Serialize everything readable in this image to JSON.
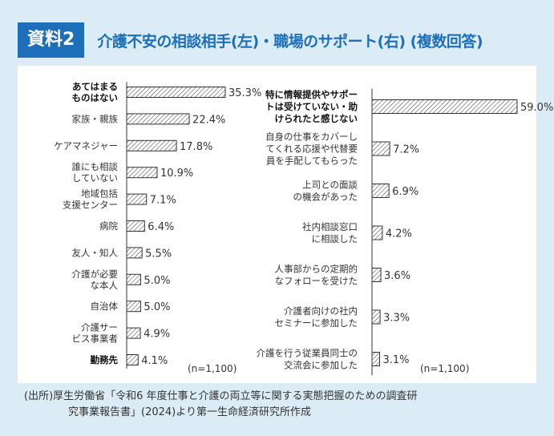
{
  "header": {
    "badge": "資料2",
    "title": "介護不安の相談相手(左)・職場のサポート(右) (複数回答)"
  },
  "colors": {
    "accent": "#1c6fb8",
    "background": "#dcecf6",
    "panel": "#ffffff",
    "bar_stroke": "#333333"
  },
  "chart_data": [
    {
      "type": "bar",
      "orientation": "horizontal",
      "title": "介護不安の相談相手",
      "categories": [
        [
          "あてはまる",
          "ものはない"
        ],
        [
          "家族・親族"
        ],
        [
          "ケアマネジャー"
        ],
        [
          "誰にも相談",
          "していない"
        ],
        [
          "地域包括",
          "支援センター"
        ],
        [
          "病院"
        ],
        [
          "友人・知人"
        ],
        [
          "介護が必要",
          "な本人"
        ],
        [
          "自治体"
        ],
        [
          "介護サー",
          "ビス事業者"
        ],
        [
          "勤務先"
        ]
      ],
      "bold": [
        true,
        false,
        false,
        false,
        false,
        false,
        false,
        false,
        false,
        false,
        true
      ],
      "values": [
        35.3,
        22.4,
        17.8,
        10.9,
        7.1,
        6.4,
        5.5,
        5.0,
        5.0,
        4.9,
        4.1
      ],
      "labels": [
        "35.3%",
        "22.4%",
        "17.8%",
        "10.9%",
        "7.1%",
        "6.4%",
        "5.5%",
        "5.0%",
        "5.0%",
        "4.9%",
        "4.1%"
      ],
      "unit": "%",
      "xlim": [
        0,
        60
      ],
      "note": "(n=1,100)"
    },
    {
      "type": "bar",
      "orientation": "horizontal",
      "title": "職場のサポート",
      "categories": [
        [
          "特に情報提供やサポー",
          "トは受けていない・助",
          "けられたと感じない"
        ],
        [
          "自身の仕事をカバーし",
          "てくれる応援や代替要",
          "員を手配してもらった"
        ],
        [
          "上司との面談",
          "の機会があった"
        ],
        [
          "社内相談窓口",
          "に相談した"
        ],
        [
          "人事部からの定期的",
          "なフォローを受けた"
        ],
        [
          "介護者向けの社内",
          "セミナーに参加した"
        ],
        [
          "介護を行う従業員同士の",
          "交流会に参加した"
        ]
      ],
      "bold": [
        true,
        false,
        false,
        false,
        false,
        false,
        false
      ],
      "values": [
        59.0,
        7.2,
        6.9,
        4.2,
        3.6,
        3.3,
        3.1
      ],
      "labels": [
        "59.0%",
        "7.2%",
        "6.9%",
        "4.2%",
        "3.6%",
        "3.3%",
        "3.1%"
      ],
      "unit": "%",
      "xlim": [
        0,
        60
      ],
      "note": "(n=1,100)"
    }
  ],
  "source": {
    "line1": "(出所)厚生労働省「令和6 年度仕事と介護の両立等に関する実態把握のための調査研",
    "line2": "究事業報告書」(2024)より第一生命経済研究所作成"
  }
}
